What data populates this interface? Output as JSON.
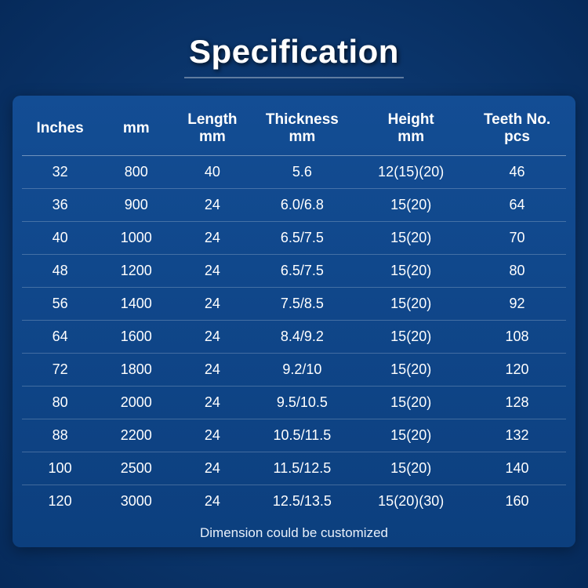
{
  "title": "Specification",
  "footer": "Dimension could be customized",
  "table": {
    "type": "table",
    "background_color": "#0d3a73",
    "panel_color": "#134d94",
    "text_color": "#ffffff",
    "row_border_color": "rgba(255,255,255,0.22)",
    "header_border_color": "rgba(255,255,255,0.4)",
    "title_fontsize": 42,
    "header_fontsize": 19,
    "cell_fontsize": 18,
    "footer_fontsize": 17,
    "columns": [
      {
        "key": "inches",
        "label": "Inches",
        "width_pct": 14,
        "align": "center"
      },
      {
        "key": "mm",
        "label": "mm",
        "width_pct": 14,
        "align": "center"
      },
      {
        "key": "length",
        "label": "Length\nmm",
        "width_pct": 14,
        "align": "center"
      },
      {
        "key": "thick",
        "label": "Thickness\nmm",
        "width_pct": 19,
        "align": "center"
      },
      {
        "key": "height",
        "label": "Height\nmm",
        "width_pct": 21,
        "align": "center"
      },
      {
        "key": "teeth",
        "label": "Teeth No.\npcs",
        "width_pct": 18,
        "align": "center"
      }
    ],
    "rows": [
      {
        "inches": "32",
        "mm": "800",
        "length": "40",
        "thick": "5.6",
        "height": "12(15)(20)",
        "teeth": "46"
      },
      {
        "inches": "36",
        "mm": "900",
        "length": "24",
        "thick": "6.0/6.8",
        "height": "15(20)",
        "teeth": "64"
      },
      {
        "inches": "40",
        "mm": "1000",
        "length": "24",
        "thick": "6.5/7.5",
        "height": "15(20)",
        "teeth": "70"
      },
      {
        "inches": "48",
        "mm": "1200",
        "length": "24",
        "thick": "6.5/7.5",
        "height": "15(20)",
        "teeth": "80"
      },
      {
        "inches": "56",
        "mm": "1400",
        "length": "24",
        "thick": "7.5/8.5",
        "height": "15(20)",
        "teeth": "92"
      },
      {
        "inches": "64",
        "mm": "1600",
        "length": "24",
        "thick": "8.4/9.2",
        "height": "15(20)",
        "teeth": "108"
      },
      {
        "inches": "72",
        "mm": "1800",
        "length": "24",
        "thick": "9.2/10",
        "height": "15(20)",
        "teeth": "120"
      },
      {
        "inches": "80",
        "mm": "2000",
        "length": "24",
        "thick": "9.5/10.5",
        "height": "15(20)",
        "teeth": "128"
      },
      {
        "inches": "88",
        "mm": "2200",
        "length": "24",
        "thick": "10.5/11.5",
        "height": "15(20)",
        "teeth": "132"
      },
      {
        "inches": "100",
        "mm": "2500",
        "length": "24",
        "thick": "11.5/12.5",
        "height": "15(20)",
        "teeth": "140"
      },
      {
        "inches": "120",
        "mm": "3000",
        "length": "24",
        "thick": "12.5/13.5",
        "height": "15(20)(30)",
        "teeth": "160"
      }
    ]
  }
}
